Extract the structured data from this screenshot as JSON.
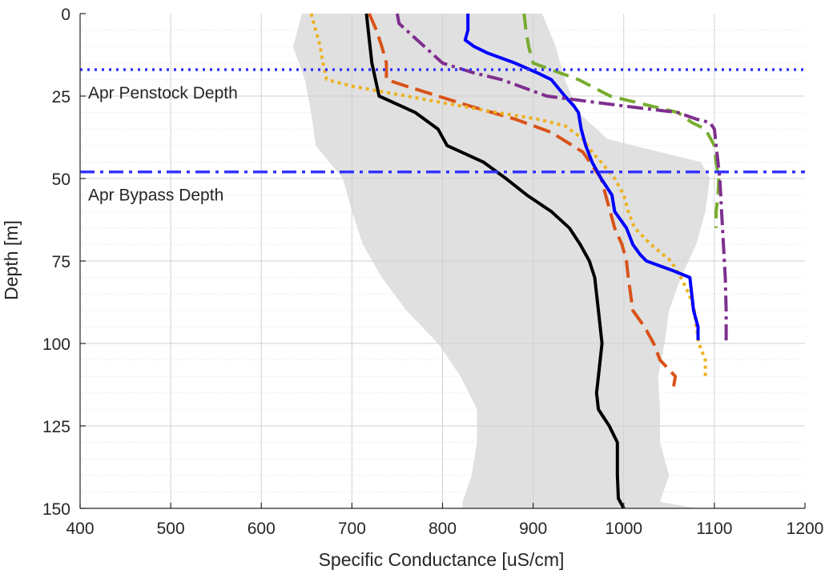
{
  "chart_data": {
    "type": "line",
    "title": "",
    "xlabel": "Specific Conductance [uS/cm]",
    "ylabel": "Depth [m]",
    "xlim": [
      400,
      1200
    ],
    "ylim": [
      0,
      150
    ],
    "y_reversed": true,
    "x_ticks": [
      400,
      500,
      600,
      700,
      800,
      900,
      1000,
      1100,
      1200
    ],
    "y_ticks": [
      0,
      25,
      50,
      75,
      100,
      125,
      150
    ],
    "grid": true,
    "minor_grid_y_step": 5,
    "legend": "none",
    "envelope": {
      "color": "#e0e0e0",
      "left": [
        [
          645,
          0
        ],
        [
          635,
          10
        ],
        [
          648,
          20
        ],
        [
          655,
          30
        ],
        [
          660,
          40
        ],
        [
          690,
          50
        ],
        [
          700,
          60
        ],
        [
          712,
          70
        ],
        [
          733,
          80
        ],
        [
          760,
          90
        ],
        [
          795,
          100
        ],
        [
          820,
          110
        ],
        [
          838,
          120
        ],
        [
          838,
          130
        ],
        [
          832,
          140
        ],
        [
          822,
          148
        ],
        [
          822,
          150
        ]
      ],
      "right": [
        [
          1080,
          150
        ],
        [
          1040,
          148
        ],
        [
          1050,
          140
        ],
        [
          1040,
          130
        ],
        [
          1040,
          120
        ],
        [
          1038,
          110
        ],
        [
          1045,
          100
        ],
        [
          1050,
          90
        ],
        [
          1063,
          80
        ],
        [
          1080,
          70
        ],
        [
          1090,
          60
        ],
        [
          1095,
          50
        ],
        [
          1085,
          45
        ],
        [
          1040,
          42
        ],
        [
          982,
          38
        ],
        [
          950,
          30
        ],
        [
          935,
          20
        ],
        [
          925,
          10
        ],
        [
          910,
          0
        ]
      ]
    },
    "series": [
      {
        "color": "#000000",
        "dash": "",
        "width": 4,
        "points": [
          [
            716,
            0
          ],
          [
            718,
            5
          ],
          [
            720,
            10
          ],
          [
            722,
            15
          ],
          [
            726,
            20
          ],
          [
            730,
            25
          ],
          [
            770,
            30
          ],
          [
            795,
            35
          ],
          [
            805,
            40
          ],
          [
            845,
            45
          ],
          [
            870,
            50
          ],
          [
            893,
            55
          ],
          [
            920,
            60
          ],
          [
            940,
            65
          ],
          [
            952,
            70
          ],
          [
            962,
            75
          ],
          [
            968,
            80
          ],
          [
            972,
            90
          ],
          [
            976,
            100
          ],
          [
            972,
            110
          ],
          [
            970,
            115
          ],
          [
            972,
            120
          ],
          [
            984,
            125
          ],
          [
            993,
            130
          ],
          [
            993,
            140
          ],
          [
            994,
            147
          ],
          [
            1000,
            150
          ]
        ]
      },
      {
        "color": "#d95319",
        "dash": "22 9",
        "width": 4,
        "points": [
          [
            719,
            0
          ],
          [
            727,
            5
          ],
          [
            733,
            10
          ],
          [
            738,
            15
          ],
          [
            738,
            20
          ],
          [
            760,
            22
          ],
          [
            830,
            28
          ],
          [
            880,
            32
          ],
          [
            920,
            36
          ],
          [
            955,
            42
          ],
          [
            975,
            50
          ],
          [
            980,
            55
          ],
          [
            985,
            60
          ],
          [
            990,
            65
          ],
          [
            998,
            70
          ],
          [
            1003,
            75
          ],
          [
            1005,
            80
          ],
          [
            1010,
            90
          ],
          [
            1023,
            95
          ],
          [
            1033,
            100
          ],
          [
            1040,
            105
          ],
          [
            1057,
            110
          ],
          [
            1055,
            113
          ]
        ]
      },
      {
        "color": "#edb120",
        "dash": "4 5",
        "width": 4,
        "points": [
          [
            655,
            0
          ],
          [
            660,
            5
          ],
          [
            665,
            10
          ],
          [
            668,
            15
          ],
          [
            670,
            17
          ],
          [
            672,
            20
          ],
          [
            700,
            22
          ],
          [
            760,
            25
          ],
          [
            820,
            28
          ],
          [
            860,
            30
          ],
          [
            905,
            32
          ],
          [
            935,
            34
          ],
          [
            955,
            38
          ],
          [
            965,
            42
          ],
          [
            975,
            45
          ],
          [
            990,
            50
          ],
          [
            1000,
            55
          ],
          [
            1005,
            60
          ],
          [
            1012,
            65
          ],
          [
            1030,
            70
          ],
          [
            1052,
            75
          ],
          [
            1063,
            80
          ],
          [
            1072,
            85
          ],
          [
            1078,
            90
          ],
          [
            1080,
            95
          ],
          [
            1083,
            100
          ],
          [
            1090,
            105
          ],
          [
            1090,
            110
          ]
        ]
      },
      {
        "color": "#0000ff",
        "dash": "",
        "width": 4,
        "points": [
          [
            828,
            0
          ],
          [
            828,
            5
          ],
          [
            825,
            8
          ],
          [
            835,
            10
          ],
          [
            850,
            12
          ],
          [
            880,
            15
          ],
          [
            905,
            18
          ],
          [
            920,
            20
          ],
          [
            935,
            25
          ],
          [
            945,
            28
          ],
          [
            950,
            30
          ],
          [
            953,
            35
          ],
          [
            958,
            40
          ],
          [
            965,
            45
          ],
          [
            975,
            50
          ],
          [
            987,
            55
          ],
          [
            990,
            60
          ],
          [
            1003,
            65
          ],
          [
            1010,
            70
          ],
          [
            1018,
            73
          ],
          [
            1025,
            75
          ],
          [
            1055,
            78
          ],
          [
            1073,
            80
          ],
          [
            1075,
            85
          ],
          [
            1077,
            90
          ],
          [
            1082,
            95
          ],
          [
            1082,
            99
          ]
        ]
      },
      {
        "color": "#77ac30",
        "dash": "20 10",
        "width": 4,
        "points": [
          [
            890,
            0
          ],
          [
            892,
            5
          ],
          [
            895,
            10
          ],
          [
            900,
            15
          ],
          [
            930,
            18
          ],
          [
            950,
            20
          ],
          [
            985,
            25
          ],
          [
            1030,
            28
          ],
          [
            1060,
            30
          ],
          [
            1075,
            33
          ],
          [
            1090,
            35
          ],
          [
            1100,
            40
          ],
          [
            1102,
            45
          ],
          [
            1105,
            50
          ],
          [
            1104,
            55
          ],
          [
            1102,
            60
          ],
          [
            1102,
            65
          ]
        ]
      },
      {
        "color": "#7e2f8e",
        "dash": "20 6 4 6",
        "width": 4,
        "points": [
          [
            750,
            0
          ],
          [
            752,
            3
          ],
          [
            760,
            5
          ],
          [
            780,
            10
          ],
          [
            800,
            15
          ],
          [
            835,
            18
          ],
          [
            865,
            20
          ],
          [
            915,
            25
          ],
          [
            1000,
            28
          ],
          [
            1060,
            30
          ],
          [
            1080,
            32
          ],
          [
            1095,
            33
          ],
          [
            1100,
            35
          ],
          [
            1102,
            40
          ],
          [
            1104,
            45
          ],
          [
            1106,
            50
          ],
          [
            1108,
            60
          ],
          [
            1110,
            70
          ],
          [
            1112,
            80
          ],
          [
            1113,
            90
          ],
          [
            1113,
            100
          ]
        ]
      }
    ],
    "reference_lines": [
      {
        "depth": 17,
        "color": "#3333ff",
        "dash": "3 6",
        "label": "Apr Penstock Depth",
        "label_depth": 24
      },
      {
        "depth": 48,
        "color": "#3333ff",
        "dash": "18 7 4 7",
        "label": "Apr Bypass Depth",
        "label_depth": 55
      }
    ]
  }
}
